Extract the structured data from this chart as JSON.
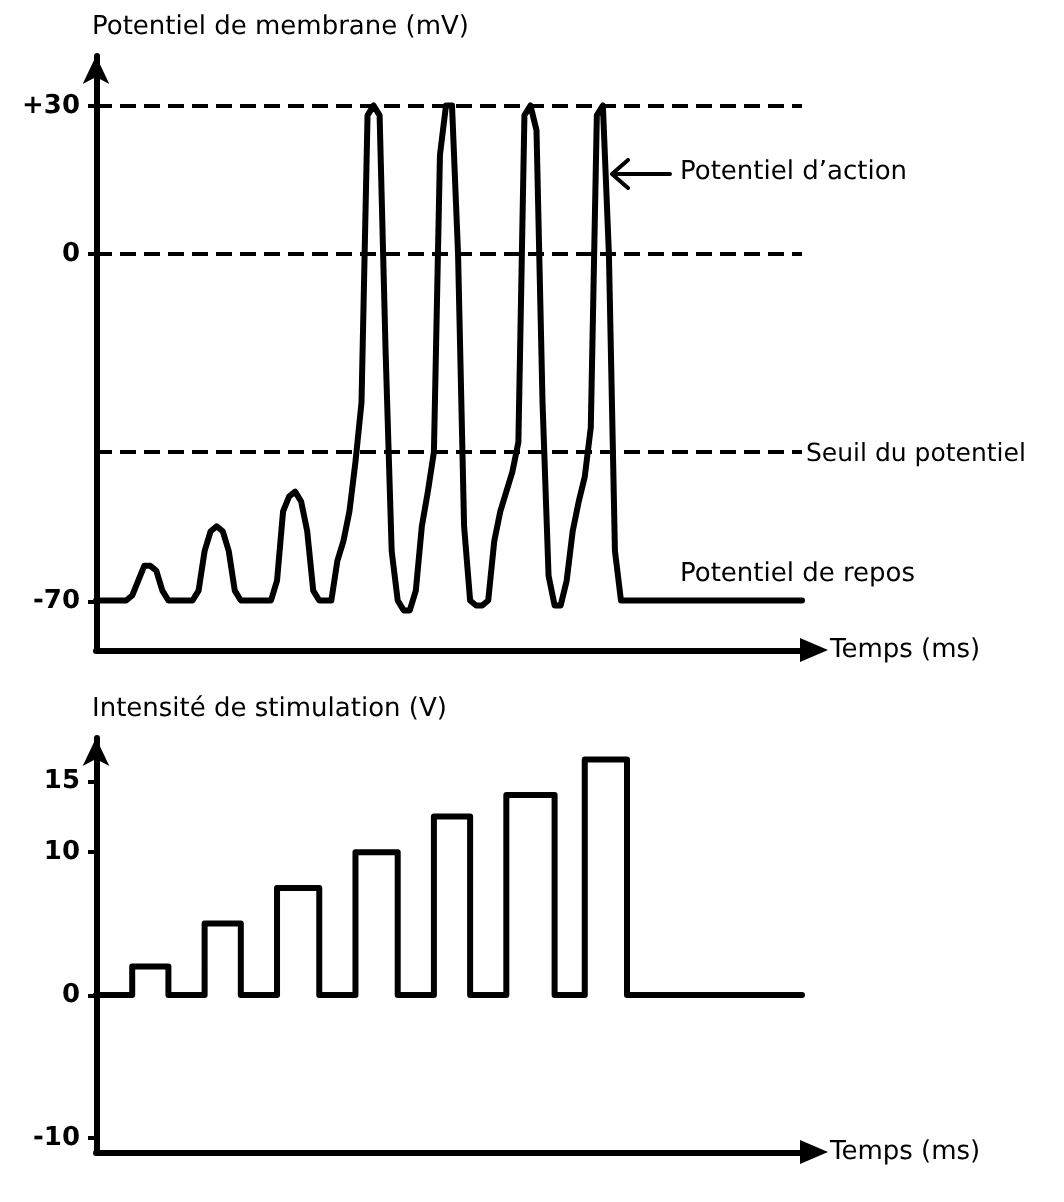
{
  "chart_data": [
    {
      "type": "line",
      "ylabel": "Potentiel de membrane (mV)",
      "xlabel": "Temps (ms)",
      "categories": [
        null,
        null,
        null,
        null,
        null,
        null,
        null,
        null,
        null,
        null,
        null,
        null,
        null,
        null,
        null,
        null,
        null,
        null,
        null,
        null,
        null,
        null,
        null,
        null,
        null,
        null,
        null,
        null,
        null,
        null,
        null,
        null,
        null,
        null,
        null,
        null,
        null,
        null,
        null,
        null,
        null,
        null,
        null,
        null,
        null,
        null,
        null,
        null,
        null,
        null,
        null,
        null,
        null,
        null,
        null,
        null,
        null,
        null,
        null,
        null,
        null,
        null,
        null,
        null,
        null,
        null,
        null,
        null,
        null,
        null,
        null,
        null,
        null,
        null,
        null,
        null,
        null,
        null,
        null,
        null,
        null,
        null,
        null,
        null,
        null,
        null,
        null,
        null,
        null,
        null,
        null,
        null,
        null,
        null,
        null,
        null,
        null,
        null,
        null,
        null,
        null,
        null,
        null,
        null,
        null,
        null,
        null,
        null,
        null,
        null,
        null,
        null,
        null,
        null,
        null,
        null,
        null,
        null
      ],
      "series": [
        {
          "color": "#000000",
          "values": [
            -70,
            -70,
            -70,
            -70,
            -70,
            -70,
            -69,
            -66,
            -63,
            -63,
            -64,
            -68,
            -70,
            -70,
            -70,
            -70,
            -70,
            -68,
            -60,
            -56,
            -55,
            -56,
            -60,
            -68,
            -70,
            -70,
            -70,
            -70,
            -70,
            -70,
            -66,
            -52,
            -49,
            -48,
            -50,
            -56,
            -68,
            -70,
            -70,
            -70,
            -62,
            -58,
            -52,
            -42,
            -30,
            28,
            30,
            28,
            -20,
            -60,
            -70,
            -72,
            -72,
            -68,
            -55,
            -48,
            -40,
            20,
            30,
            30,
            0,
            -55,
            -70,
            -71,
            -71,
            -70,
            -58,
            -52,
            -48,
            -44,
            -38,
            28,
            30,
            25,
            -30,
            -65,
            -71,
            -71,
            -66,
            -56,
            -50,
            -45,
            -35,
            28,
            30,
            0,
            -60,
            -70,
            -70,
            -70,
            -70,
            -70,
            -70,
            -70,
            -70,
            -70,
            -70,
            -70,
            -70,
            -70,
            -70,
            -70,
            -70,
            -70,
            -70,
            -70,
            -70,
            -70,
            -70,
            -70,
            -70,
            -70,
            -70,
            -70,
            -70,
            -70,
            -70,
            -70
          ]
        }
      ],
      "ylim": [
        -80,
        40
      ],
      "yticks": [
        {
          "value": 30,
          "label": "+30"
        },
        0,
        -70
      ],
      "ref_lines": [
        {
          "axis": "y",
          "value": 30,
          "label": null,
          "color": "#000000",
          "line_style": "dashed"
        },
        {
          "axis": "y",
          "value": 0,
          "label": null,
          "color": "#000000",
          "line_style": "dashed"
        },
        {
          "axis": "y",
          "value": -40,
          "label": "Seuil du potentiel",
          "color": "#000000",
          "line_style": "dashed"
        }
      ],
      "annotations": [
        "Potentiel d’action",
        {
          "text": "Potentiel de repos",
          "y": -70
        }
      ],
      "line_style": "solid",
      "grid": false,
      "tick_labels": "y"
    },
    {
      "type": "step",
      "ylabel": "Intensité de stimulation (V)",
      "xlabel": "Temps (ms)",
      "categories": [
        null,
        null,
        null,
        null,
        null,
        null,
        null,
        null,
        null,
        null,
        null,
        null,
        null,
        null,
        null,
        null,
        null,
        null,
        null,
        null,
        null,
        null,
        null,
        null,
        null,
        null,
        null,
        null,
        null,
        null,
        null,
        null,
        null,
        null,
        null,
        null,
        null,
        null,
        null,
        null,
        null,
        null,
        null,
        null,
        null,
        null,
        null,
        null,
        null,
        null,
        null,
        null,
        null,
        null,
        null,
        null,
        null,
        null,
        null,
        null,
        null,
        null,
        null,
        null,
        null,
        null,
        null,
        null,
        null,
        null,
        null,
        null,
        null,
        null,
        null,
        null,
        null,
        null,
        null,
        null,
        null,
        null,
        null,
        null,
        null,
        null,
        null,
        null,
        null,
        null,
        null,
        null,
        null,
        null,
        null,
        null,
        null,
        null,
        null,
        null,
        null,
        null,
        null,
        null,
        null,
        null,
        null,
        null,
        null,
        null,
        null,
        null,
        null,
        null,
        null,
        null,
        null,
        null
      ],
      "series": [
        {
          "color": "#000000",
          "values": [
            0,
            0,
            0,
            0,
            0,
            0,
            2,
            2,
            2,
            2,
            2,
            2,
            0,
            0,
            0,
            0,
            0,
            0,
            5,
            5,
            5,
            5,
            5,
            5,
            0,
            0,
            0,
            0,
            0,
            0,
            7.5,
            7.5,
            7.5,
            7.5,
            7.5,
            7.5,
            7.5,
            0,
            0,
            0,
            0,
            0,
            0,
            10,
            10,
            10,
            10,
            10,
            10,
            10,
            0,
            0,
            0,
            0,
            0,
            0,
            12.5,
            12.5,
            12.5,
            12.5,
            12.5,
            12.5,
            0,
            0,
            0,
            0,
            0,
            0,
            14,
            14,
            14,
            14,
            14,
            14,
            14,
            14,
            0,
            0,
            0,
            0,
            0,
            16.5,
            16.5,
            16.5,
            16.5,
            16.5,
            16.5,
            16.5,
            0,
            0,
            0,
            0,
            0,
            0,
            0,
            0,
            0,
            0,
            0,
            0,
            0,
            0,
            0,
            0,
            0,
            0,
            0,
            0,
            0,
            0,
            0,
            0,
            0,
            0,
            0,
            0,
            0,
            0
          ]
        }
      ],
      "ylim": [
        -11,
        18
      ],
      "yticks": [
        15,
        10,
        0,
        -10
      ],
      "line_style": "solid",
      "grid": false,
      "tick_labels": "y"
    }
  ]
}
